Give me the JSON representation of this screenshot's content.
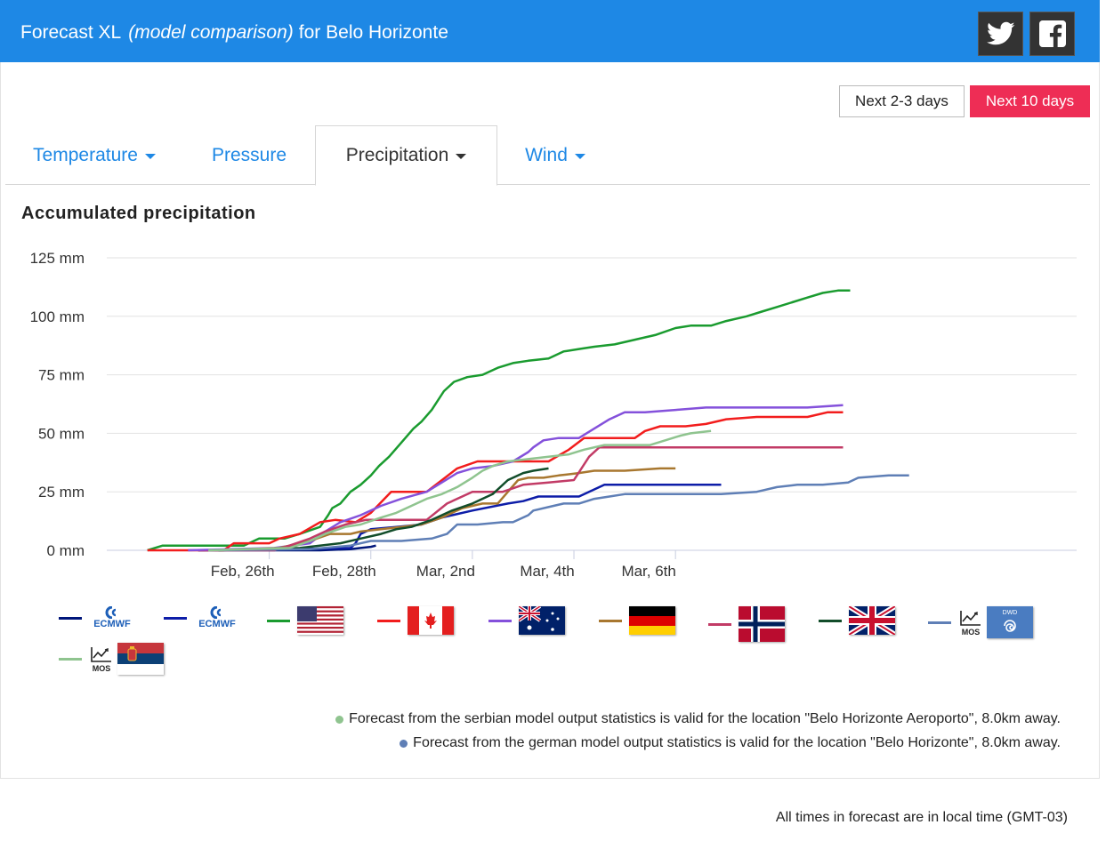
{
  "header": {
    "title": "Forecast XL",
    "subtitle": "(model comparison)",
    "location": "for Belo Horizonte",
    "twitter_icon": "twitter-icon",
    "facebook_icon": "facebook-icon",
    "bg_color": "#1e88e5"
  },
  "range_buttons": {
    "short": "Next 2-3 days",
    "long": "Next 10 days",
    "active": "long",
    "active_color": "#ee2d55"
  },
  "tabs": [
    {
      "label": "Temperature",
      "dropdown": true,
      "active": false
    },
    {
      "label": "Pressure",
      "dropdown": false,
      "active": false
    },
    {
      "label": "Precipitation",
      "dropdown": true,
      "active": true
    },
    {
      "label": "Wind",
      "dropdown": true,
      "active": false
    }
  ],
  "chart_title": "Accumulated precipitation",
  "chart_data": {
    "type": "line",
    "title": "Accumulated precipitation",
    "xlabel": "",
    "ylabel": "",
    "xlim": [
      -2.6,
      6.95
    ],
    "ylim": [
      0,
      125
    ],
    "x_unit": "days relative to Feb 28th",
    "x_ticks": [
      {
        "x": -1,
        "label": "Feb, 26th"
      },
      {
        "x": 0,
        "label": "Feb, 28th"
      },
      {
        "x": 1,
        "label": "Mar, 2nd"
      },
      {
        "x": 2,
        "label": "Mar, 4th"
      },
      {
        "x": 3,
        "label": "Mar, 6th"
      }
    ],
    "y_ticks": [
      {
        "y": 0,
        "label": "0 mm"
      },
      {
        "y": 25,
        "label": "25 mm"
      },
      {
        "y": 50,
        "label": "50 mm"
      },
      {
        "y": 75,
        "label": "75 mm"
      },
      {
        "y": 100,
        "label": "100 mm"
      },
      {
        "y": 125,
        "label": "125 mm"
      }
    ],
    "grid": true,
    "legend_position": "bottom",
    "series": [
      {
        "color": "#00167a",
        "legend": "ECMWF",
        "points": [
          [
            -1.7,
            0
          ],
          [
            -1.0,
            0
          ],
          [
            -0.5,
            0
          ],
          [
            -0.2,
            0.5
          ],
          [
            -0.1,
            1
          ],
          [
            0.0,
            1.5
          ],
          [
            0.05,
            2
          ]
        ]
      },
      {
        "color": "#0d1da8",
        "legend": "ECMWF",
        "points": [
          [
            -1.7,
            0
          ],
          [
            -0.8,
            0.5
          ],
          [
            -0.2,
            1
          ],
          [
            -0.15,
            3
          ],
          [
            -0.1,
            7
          ],
          [
            0.0,
            9
          ],
          [
            0.25,
            10
          ],
          [
            0.5,
            11
          ],
          [
            0.7,
            14
          ],
          [
            1.0,
            17
          ],
          [
            1.35,
            20
          ],
          [
            1.5,
            21
          ],
          [
            1.65,
            23
          ],
          [
            2.05,
            23
          ],
          [
            2.3,
            28
          ],
          [
            2.6,
            28
          ],
          [
            3.1,
            28
          ],
          [
            3.4,
            28
          ],
          [
            3.45,
            28
          ]
        ]
      },
      {
        "color": "#1a9b2f",
        "legend": "USA",
        "points": [
          [
            -2.2,
            0
          ],
          [
            -2.05,
            2
          ],
          [
            -1.5,
            2
          ],
          [
            -1.25,
            2
          ],
          [
            -1.1,
            5
          ],
          [
            -0.85,
            5
          ],
          [
            -0.7,
            7
          ],
          [
            -0.5,
            10
          ],
          [
            -0.42,
            15
          ],
          [
            -0.38,
            18
          ],
          [
            -0.3,
            20
          ],
          [
            -0.2,
            25
          ],
          [
            -0.1,
            28
          ],
          [
            0.0,
            32
          ],
          [
            0.08,
            36
          ],
          [
            0.18,
            40
          ],
          [
            0.3,
            46
          ],
          [
            0.42,
            52
          ],
          [
            0.5,
            55
          ],
          [
            0.6,
            60
          ],
          [
            0.72,
            68
          ],
          [
            0.82,
            72
          ],
          [
            0.95,
            74
          ],
          [
            1.1,
            75
          ],
          [
            1.25,
            78
          ],
          [
            1.4,
            80
          ],
          [
            1.55,
            81
          ],
          [
            1.75,
            82
          ],
          [
            1.9,
            85
          ],
          [
            2.05,
            86
          ],
          [
            2.2,
            87
          ],
          [
            2.4,
            88
          ],
          [
            2.6,
            90
          ],
          [
            2.8,
            92
          ],
          [
            3.0,
            95
          ],
          [
            3.15,
            96
          ],
          [
            3.35,
            96
          ],
          [
            3.5,
            98
          ],
          [
            3.7,
            100
          ],
          [
            3.85,
            102
          ],
          [
            4.0,
            104
          ],
          [
            4.15,
            106
          ],
          [
            4.3,
            108
          ],
          [
            4.45,
            110
          ],
          [
            4.6,
            111
          ],
          [
            4.72,
            111
          ]
        ]
      },
      {
        "color": "#f21d1d",
        "legend": "Canada",
        "points": [
          [
            -2.2,
            0
          ],
          [
            -1.45,
            0
          ],
          [
            -1.35,
            3
          ],
          [
            -1.0,
            3
          ],
          [
            -0.9,
            5
          ],
          [
            -0.7,
            7
          ],
          [
            -0.5,
            12
          ],
          [
            -0.35,
            13
          ],
          [
            -0.15,
            12
          ],
          [
            0.0,
            16
          ],
          [
            0.2,
            25
          ],
          [
            0.55,
            25
          ],
          [
            0.85,
            35
          ],
          [
            1.05,
            38
          ],
          [
            1.25,
            38
          ],
          [
            1.45,
            38
          ],
          [
            1.75,
            38
          ],
          [
            1.95,
            43
          ],
          [
            2.1,
            48
          ],
          [
            2.3,
            48
          ],
          [
            2.6,
            48
          ],
          [
            2.7,
            51
          ],
          [
            2.85,
            53
          ],
          [
            3.1,
            53
          ],
          [
            3.3,
            54
          ],
          [
            3.5,
            56
          ],
          [
            3.8,
            57
          ],
          [
            4.3,
            57
          ],
          [
            4.5,
            59
          ],
          [
            4.65,
            59
          ]
        ]
      },
      {
        "color": "#8451db",
        "legend": "Australia",
        "points": [
          [
            -1.8,
            0
          ],
          [
            -0.95,
            1
          ],
          [
            -0.6,
            3
          ],
          [
            -0.45,
            8
          ],
          [
            -0.3,
            12
          ],
          [
            -0.1,
            15
          ],
          [
            0.1,
            19
          ],
          [
            0.3,
            22
          ],
          [
            0.55,
            25
          ],
          [
            0.7,
            29
          ],
          [
            0.85,
            33
          ],
          [
            1.0,
            35
          ],
          [
            1.2,
            36
          ],
          [
            1.4,
            38
          ],
          [
            1.55,
            42
          ],
          [
            1.6,
            44
          ],
          [
            1.7,
            47
          ],
          [
            1.85,
            48
          ],
          [
            2.05,
            48
          ],
          [
            2.2,
            52
          ],
          [
            2.35,
            56
          ],
          [
            2.5,
            59
          ],
          [
            2.7,
            59
          ],
          [
            3.0,
            60
          ],
          [
            3.3,
            61
          ],
          [
            3.6,
            61
          ],
          [
            4.0,
            61
          ],
          [
            4.3,
            61
          ],
          [
            4.65,
            62
          ]
        ]
      },
      {
        "color": "#a8772f",
        "legend": "Germany",
        "points": [
          [
            -1.5,
            0
          ],
          [
            -0.9,
            1
          ],
          [
            -0.6,
            4
          ],
          [
            -0.4,
            7
          ],
          [
            -0.2,
            7
          ],
          [
            -0.1,
            8
          ],
          [
            0.1,
            9
          ],
          [
            0.3,
            10
          ],
          [
            0.5,
            11
          ],
          [
            0.7,
            14
          ],
          [
            0.9,
            18
          ],
          [
            1.1,
            20
          ],
          [
            1.25,
            20
          ],
          [
            1.35,
            25
          ],
          [
            1.45,
            30
          ],
          [
            1.55,
            31
          ],
          [
            1.7,
            31
          ],
          [
            1.85,
            32
          ],
          [
            2.05,
            33
          ],
          [
            2.2,
            34
          ],
          [
            2.5,
            34
          ],
          [
            2.85,
            35
          ],
          [
            3.0,
            35
          ]
        ]
      },
      {
        "color": "#c23b66",
        "legend": "Norway",
        "points": [
          [
            -1.6,
            0
          ],
          [
            -0.95,
            0
          ],
          [
            -0.8,
            2
          ],
          [
            -0.6,
            5
          ],
          [
            -0.45,
            8
          ],
          [
            -0.25,
            11
          ],
          [
            -0.05,
            13
          ],
          [
            0.25,
            13
          ],
          [
            0.55,
            13
          ],
          [
            0.75,
            20
          ],
          [
            1.0,
            25
          ],
          [
            1.3,
            25
          ],
          [
            1.5,
            28
          ],
          [
            1.75,
            29
          ],
          [
            2.0,
            30
          ],
          [
            2.15,
            40
          ],
          [
            2.25,
            44
          ],
          [
            2.5,
            44
          ],
          [
            2.9,
            44
          ],
          [
            3.3,
            44
          ],
          [
            3.7,
            44
          ],
          [
            4.1,
            44
          ],
          [
            4.4,
            44
          ],
          [
            4.65,
            44
          ]
        ]
      },
      {
        "color": "#124d2a",
        "legend": "UK",
        "points": [
          [
            -1.5,
            0
          ],
          [
            -0.7,
            1
          ],
          [
            -0.3,
            3
          ],
          [
            -0.1,
            5
          ],
          [
            0.1,
            7
          ],
          [
            0.25,
            9
          ],
          [
            0.4,
            10
          ],
          [
            0.6,
            13
          ],
          [
            0.8,
            17
          ],
          [
            1.0,
            20
          ],
          [
            1.2,
            24
          ],
          [
            1.35,
            30
          ],
          [
            1.5,
            33
          ],
          [
            1.6,
            34
          ],
          [
            1.75,
            35
          ]
        ]
      },
      {
        "color": "#5f7fb6",
        "legend": "DWD MOS",
        "points": [
          [
            -1.6,
            0
          ],
          [
            -0.6,
            0.5
          ],
          [
            -0.2,
            2
          ],
          [
            0.0,
            4
          ],
          [
            0.3,
            4
          ],
          [
            0.6,
            5
          ],
          [
            0.75,
            7
          ],
          [
            0.85,
            11
          ],
          [
            1.05,
            11
          ],
          [
            1.3,
            12
          ],
          [
            1.4,
            12
          ],
          [
            1.55,
            15
          ],
          [
            1.6,
            17
          ],
          [
            1.8,
            19
          ],
          [
            1.9,
            20
          ],
          [
            2.05,
            20
          ],
          [
            2.2,
            22
          ],
          [
            2.35,
            23
          ],
          [
            2.5,
            24
          ],
          [
            2.8,
            24
          ],
          [
            3.1,
            24
          ],
          [
            3.45,
            24
          ],
          [
            3.8,
            25
          ],
          [
            4.0,
            27
          ],
          [
            4.2,
            28
          ],
          [
            4.45,
            28
          ],
          [
            4.7,
            29
          ],
          [
            4.8,
            31
          ],
          [
            5.1,
            32
          ],
          [
            5.3,
            32
          ]
        ]
      },
      {
        "color": "#8fc48f",
        "legend": "Serbian MOS",
        "points": [
          [
            -1.6,
            0
          ],
          [
            -0.8,
            1
          ],
          [
            -0.6,
            4
          ],
          [
            -0.45,
            7
          ],
          [
            -0.25,
            10
          ],
          [
            -0.1,
            11
          ],
          [
            0.1,
            14
          ],
          [
            0.25,
            16
          ],
          [
            0.4,
            19
          ],
          [
            0.55,
            22
          ],
          [
            0.7,
            24
          ],
          [
            0.85,
            27
          ],
          [
            1.0,
            31
          ],
          [
            1.1,
            34
          ],
          [
            1.2,
            36
          ],
          [
            1.35,
            38
          ],
          [
            1.55,
            39
          ],
          [
            1.75,
            40
          ],
          [
            1.95,
            41
          ],
          [
            2.1,
            43
          ],
          [
            2.3,
            45
          ],
          [
            2.5,
            45
          ],
          [
            2.75,
            45
          ],
          [
            2.9,
            47
          ],
          [
            3.05,
            49
          ],
          [
            3.15,
            50
          ],
          [
            3.35,
            51
          ]
        ]
      }
    ]
  },
  "legend": [
    {
      "color": "#00167a",
      "icon": "ecmwf-logo-icon",
      "text": "ECMWF"
    },
    {
      "color": "#0d1da8",
      "icon": "ecmwf-logo-icon",
      "text": "ECMWF"
    },
    {
      "color": "#1a9b2f",
      "icon": "usa-flag-icon"
    },
    {
      "color": "#f21d1d",
      "icon": "canada-flag-icon"
    },
    {
      "color": "#8451db",
      "icon": "australia-flag-icon"
    },
    {
      "color": "#a8772f",
      "icon": "germany-flag-icon"
    },
    {
      "color": "#c23b66",
      "icon": "norway-flag-icon"
    },
    {
      "color": "#124d2a",
      "icon": "uk-flag-icon"
    },
    {
      "color": "#5f7fb6",
      "icon": "dwd-mos-icon",
      "text": "MOS",
      "badge": "DWD"
    },
    {
      "color": "#8fc48f",
      "icon": "serbia-mos-icon",
      "text": "MOS"
    }
  ],
  "notes": [
    {
      "dot_color": "#8fc48f",
      "text": "Forecast from the serbian model output statistics is valid for the location \"Belo Horizonte Aeroporto\", 8.0km away."
    },
    {
      "dot_color": "#5f7fb6",
      "text": "Forecast from the german model output statistics is valid for the location \"Belo Horizonte\", 8.0km away."
    }
  ],
  "footer": "All times in forecast are in local time (GMT-03)"
}
